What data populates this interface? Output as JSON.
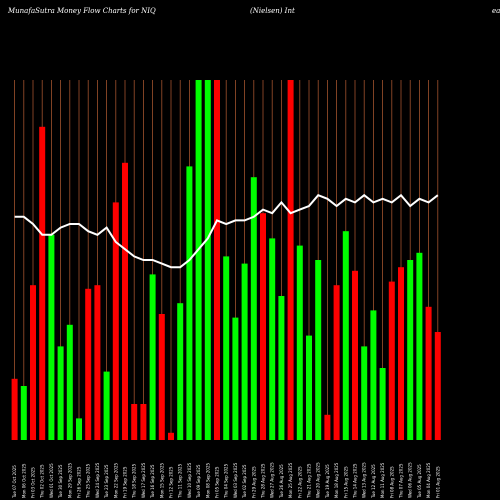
{
  "header": {
    "title": "MunafaSutra  Money Flow  Charts for NIQ",
    "subtitle": "(Nielsen)  Int",
    "right": "ea"
  },
  "chart_data": {
    "type": "bar",
    "ylim": [
      0,
      100
    ],
    "colors": {
      "up": "#00ff00",
      "down": "#ff0000",
      "line": "#ffffff",
      "grid": "#a0522d",
      "background": "#000000"
    },
    "categories": [
      "Tue 07 Oct 2025",
      "Mon 06 Oct 2025",
      "Fri 03 Oct 2025",
      "Thu 02 Oct 2025",
      "Wed 01 Oct 2025",
      "Tue 30 Sep 2025",
      "Mon 29 Sep 2025",
      "Fri 26 Sep 2025",
      "Thu 25 Sep 2025",
      "Wed 24 Sep 2025",
      "Tue 23 Sep 2025",
      "Mon 22 Sep 2025",
      "Fri 19 Sep 2025",
      "Thu 18 Sep 2025",
      "Wed 17 Sep 2025",
      "Tue 16 Sep 2025",
      "Mon 15 Sep 2025",
      "Fri 12 Sep 2025",
      "Thu 11 Sep 2025",
      "Wed 10 Sep 2025",
      "Tue 09 Sep 2025",
      "Mon 08 Sep 2025",
      "Fri 05 Sep 2025",
      "Thu 04 Sep 2025",
      "Wed 03 Sep 2025",
      "Tue 02 Sep 2025",
      "Fri 29 Aug 2025",
      "Thu 28 Aug 2025",
      "Wed 27 Aug 2025",
      "Tue 26 Aug 2025",
      "Mon 25 Aug 2025",
      "Fri 22 Aug 2025",
      "Thu 21 Aug 2025",
      "Wed 20 Aug 2025",
      "Tue 19 Aug 2025",
      "Mon 18 Aug 2025",
      "Fri 15 Aug 2025",
      "Thu 14 Aug 2025",
      "Wed 13 Aug 2025",
      "Tue 12 Aug 2025",
      "Mon 11 Aug 2025",
      "Fri 08 Aug 2025",
      "Thu 07 Aug 2025",
      "Wed 06 Aug 2025",
      "Tue 05 Aug 2025",
      "Mon 04 Aug 2025",
      "Fri 01 Aug 2025"
    ],
    "series": [
      {
        "values": [
          17,
          15,
          43,
          87,
          57,
          26,
          32,
          6,
          42,
          43,
          19,
          66,
          77,
          10,
          10,
          46,
          35,
          2,
          38,
          76,
          100,
          100,
          100,
          51,
          34,
          49,
          73,
          63,
          56,
          40,
          100,
          54,
          29,
          50,
          7,
          43,
          58,
          47,
          26,
          36,
          20,
          44,
          48,
          50,
          52,
          37,
          30
        ],
        "directions": [
          "down",
          "up",
          "down",
          "down",
          "up",
          "up",
          "up",
          "up",
          "down",
          "down",
          "up",
          "down",
          "down",
          "down",
          "down",
          "up",
          "down",
          "down",
          "up",
          "up",
          "up",
          "up",
          "down",
          "up",
          "up",
          "up",
          "up",
          "down",
          "up",
          "up",
          "down",
          "up",
          "up",
          "up",
          "down",
          "down",
          "up",
          "down",
          "up",
          "up",
          "up",
          "down",
          "down",
          "up",
          "up",
          "down",
          "down"
        ]
      },
      {
        "values": [
          62,
          62,
          60,
          57,
          57,
          59,
          60,
          60,
          58,
          57,
          59,
          55,
          53,
          51,
          50,
          50,
          49,
          48,
          48,
          50,
          53,
          56,
          61,
          60,
          61,
          61,
          62,
          64,
          63,
          66,
          63,
          64,
          65,
          68,
          67,
          65,
          67,
          66,
          68,
          66,
          67,
          66,
          68,
          65,
          67,
          66,
          68
        ]
      }
    ]
  }
}
